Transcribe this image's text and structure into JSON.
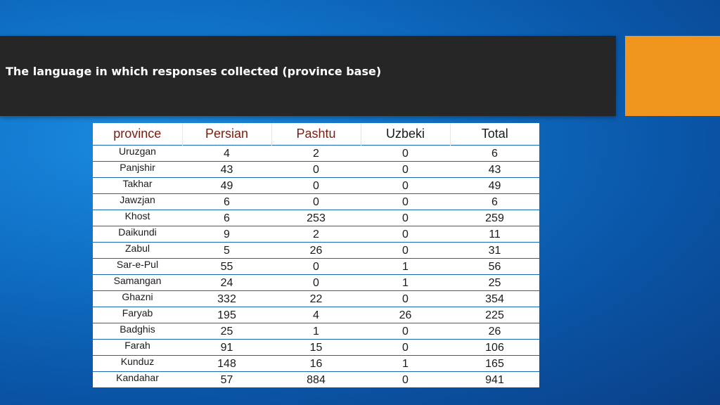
{
  "slide": {
    "title": "The language in which responses collected (province base)",
    "colors": {
      "title_bar": "#262626",
      "accent": "#f0961e",
      "header_text_dark_red": "#7a1d0e",
      "row_border": "#1a66b8"
    }
  },
  "table": {
    "headers": {
      "province": "province",
      "persian": "Persian",
      "pashtu": "Pashtu",
      "uzbeki": "Uzbeki",
      "total": "Total"
    },
    "rows": [
      {
        "province": "Uruzgan",
        "persian": "4",
        "pashtu": "2",
        "uzbeki": "0",
        "total": "6"
      },
      {
        "province": "Panjshir",
        "persian": "43",
        "pashtu": "0",
        "uzbeki": "0",
        "total": "43"
      },
      {
        "province": "Takhar",
        "persian": "49",
        "pashtu": "0",
        "uzbeki": "0",
        "total": "49"
      },
      {
        "province": "Jawzjan",
        "persian": "6",
        "pashtu": "0",
        "uzbeki": "0",
        "total": "6"
      },
      {
        "province": "Khost",
        "persian": "6",
        "pashtu": "253",
        "uzbeki": "0",
        "total": "259"
      },
      {
        "province": "Daikundi",
        "persian": "9",
        "pashtu": "2",
        "uzbeki": "0",
        "total": "11"
      },
      {
        "province": "Zabul",
        "persian": "5",
        "pashtu": "26",
        "uzbeki": "0",
        "total": "31"
      },
      {
        "province": "Sar-e-Pul",
        "persian": "55",
        "pashtu": "0",
        "uzbeki": "1",
        "total": "56"
      },
      {
        "province": "Samangan",
        "persian": "24",
        "pashtu": "0",
        "uzbeki": "1",
        "total": "25"
      },
      {
        "province": "Ghazni",
        "persian": "332",
        "pashtu": "22",
        "uzbeki": "0",
        "total": "354"
      },
      {
        "province": "Faryab",
        "persian": "195",
        "pashtu": "4",
        "uzbeki": "26",
        "total": "225"
      },
      {
        "province": "Badghis",
        "persian": "25",
        "pashtu": "1",
        "uzbeki": "0",
        "total": "26"
      },
      {
        "province": "Farah",
        "persian": "91",
        "pashtu": "15",
        "uzbeki": "0",
        "total": "106"
      },
      {
        "province": "Kunduz",
        "persian": "148",
        "pashtu": "16",
        "uzbeki": "1",
        "total": "165"
      },
      {
        "province": "Kandahar",
        "persian": "57",
        "pashtu": "884",
        "uzbeki": "0",
        "total": "941"
      }
    ]
  }
}
